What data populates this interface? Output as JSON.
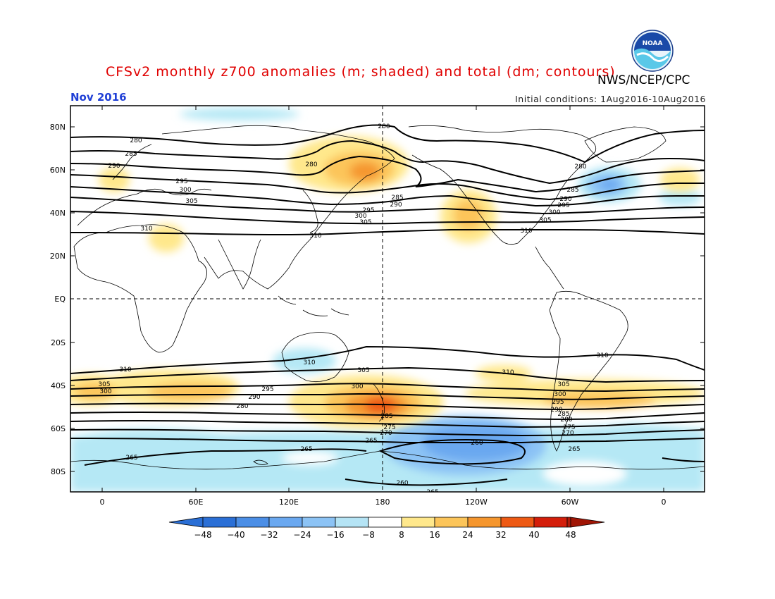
{
  "header": {
    "title": "CFSv2 monthly z700 anomalies (m; shaded) and total (dm; contours)",
    "agency": "NWS/NCEP/CPC",
    "period": "Nov 2016",
    "initial_conditions": "Initial conditions: 1Aug2016-10Aug2016",
    "logo_text": "NOAA"
  },
  "axes": {
    "lat_labels": [
      "80N",
      "60N",
      "40N",
      "20N",
      "EQ",
      "20S",
      "40S",
      "60S",
      "80S"
    ],
    "lon_labels": [
      "0",
      "60E",
      "120E",
      "180",
      "120W",
      "60W",
      "0"
    ]
  },
  "contour_labels": [
    "280",
    "285",
    "290",
    "295",
    "300",
    "305",
    "310",
    "265",
    "260",
    "270",
    "275"
  ],
  "colorbar": {
    "ticks": [
      "−48",
      "−40",
      "−32",
      "−24",
      "−16",
      "−8",
      "8",
      "16",
      "24",
      "32",
      "40",
      "48"
    ],
    "colors": [
      "#2a6fd6",
      "#4b8ee6",
      "#6aa8f0",
      "#8cc3f5",
      "#b5e4f5",
      "#ffffff",
      "#ffe88c",
      "#fcc55a",
      "#f5962e",
      "#ee5a14",
      "#d41e0a"
    ]
  },
  "colors": {
    "title": "#e00000",
    "period": "#1f3fd6"
  }
}
